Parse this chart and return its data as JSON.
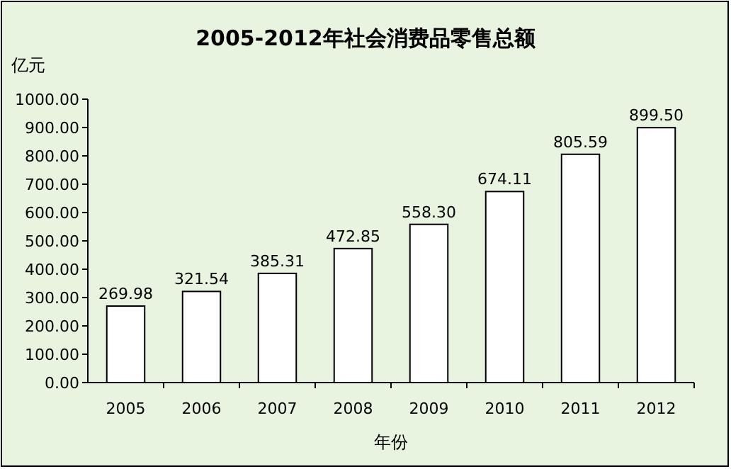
{
  "chart_data": {
    "type": "bar",
    "title": "2005-2012年社会消费品零售总额",
    "xlabel": "年份",
    "ylabel": "亿元",
    "categories": [
      "2005",
      "2006",
      "2007",
      "2008",
      "2009",
      "2010",
      "2011",
      "2012"
    ],
    "values": [
      269.98,
      321.54,
      385.31,
      472.85,
      558.3,
      674.11,
      805.59,
      899.5
    ],
    "value_labels": [
      "269.98",
      "321.54",
      "385.31",
      "472.85",
      "558.30",
      "674.11",
      "805.59",
      "899.50"
    ],
    "color": "#ffffff",
    "ylim": [
      0,
      1000
    ],
    "yticks": [
      {
        "value": 0,
        "label": "0.00"
      },
      {
        "value": 100,
        "label": "100.00"
      },
      {
        "value": 200,
        "label": "200.00"
      },
      {
        "value": 300,
        "label": "300.00"
      },
      {
        "value": 400,
        "label": "400.00"
      },
      {
        "value": 500,
        "label": "500.00"
      },
      {
        "value": 600,
        "label": "600.00"
      },
      {
        "value": 700,
        "label": "700.00"
      },
      {
        "value": 800,
        "label": "800.00"
      },
      {
        "value": 900,
        "label": "900.00"
      },
      {
        "value": 1000,
        "label": "1000.00"
      }
    ],
    "grid": false
  }
}
